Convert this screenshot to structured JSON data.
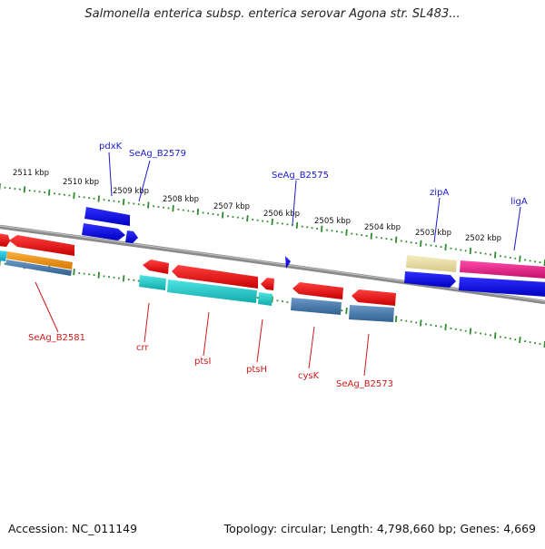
{
  "title": "Salmonella enterica subsp. enterica serovar Agona str. SL483...",
  "footer": {
    "accession": "Accession: NC_011149",
    "topology": "Topology: circular; Length: 4,798,660 bp; Genes: 4,669"
  },
  "ruler_labels": [
    {
      "text": "2511 kbp",
      "kbp": 2511
    },
    {
      "text": "2510 kbp",
      "kbp": 2510
    },
    {
      "text": "2509 kbp",
      "kbp": 2509
    },
    {
      "text": "2508 kbp",
      "kbp": 2508
    },
    {
      "text": "2507 kbp",
      "kbp": 2507
    },
    {
      "text": "2506 kbp",
      "kbp": 2506
    },
    {
      "text": "2505 kbp",
      "kbp": 2505
    },
    {
      "text": "2504 kbp",
      "kbp": 2504
    },
    {
      "text": "2503 kbp",
      "kbp": 2503
    },
    {
      "text": "2502 kbp",
      "kbp": 2502
    }
  ],
  "gene_labels": {
    "top": [
      "pdxK",
      "SeAg_B2579",
      "SeAg_B2575",
      "zipA",
      "ligA"
    ],
    "bottom": [
      "SeAg_B2581",
      "crr",
      "ptsI",
      "ptsH",
      "cysK",
      "SeAg_B2573"
    ]
  },
  "colors": {
    "top_label": "#1a1acc",
    "bottom_label": "#cc1a1a",
    "ruler": "#2e8b2e",
    "backbone": "#7f7f7f",
    "forward_gene": "#0000ee",
    "reverse_gene": "#ee0000",
    "cds_teal": "#18c8c8",
    "cds_steel": "#4a7fb0",
    "cds_orange": "#f09020",
    "cds_yellow": "#ece0a0",
    "cds_magenta": "#e81c8c"
  }
}
